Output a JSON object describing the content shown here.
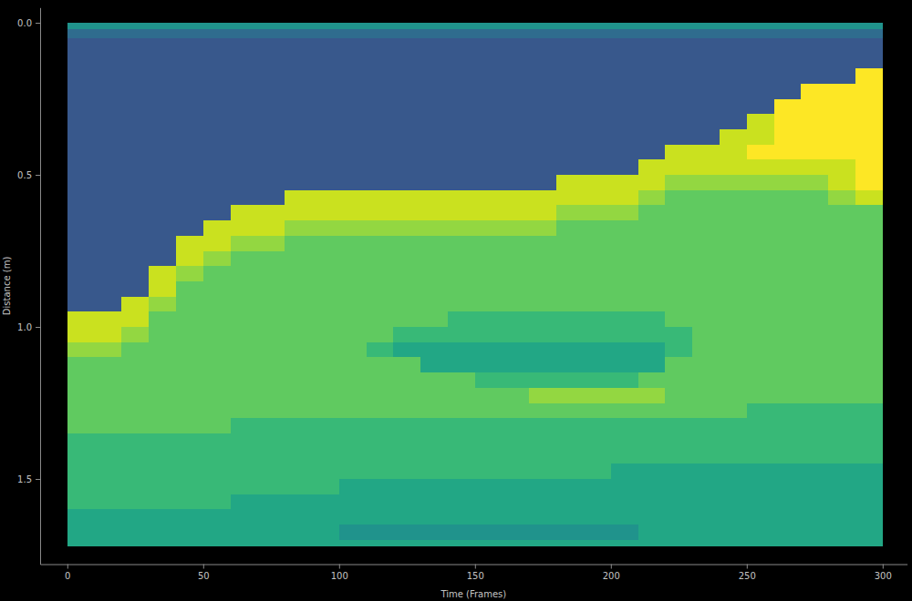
{
  "chart_data": {
    "type": "heatmap",
    "xlabel": "Time (Frames)",
    "ylabel": "Distance (m)",
    "xlim": [
      -10,
      309
    ],
    "ylim": [
      -0.05,
      1.78
    ],
    "xticks": [
      0,
      50,
      100,
      150,
      200,
      250,
      300
    ],
    "yticks": [
      {
        "value": 0,
        "label": "0.0"
      },
      0.5,
      {
        "value": 1,
        "label": "1.0"
      },
      1.5
    ],
    "zlim": [
      0,
      9
    ],
    "x_bins": [
      0,
      10,
      20,
      30,
      40,
      50,
      60,
      70,
      80,
      90,
      100,
      110,
      120,
      130,
      140,
      150,
      160,
      170,
      180,
      190,
      200,
      210,
      220,
      230,
      240,
      250,
      260,
      270,
      280,
      290,
      300
    ],
    "y_bins": [
      0,
      0.02,
      0.05,
      0.1,
      0.15,
      0.2,
      0.25,
      0.3,
      0.35,
      0.4,
      0.45,
      0.5,
      0.55,
      0.6,
      0.65,
      0.7,
      0.75,
      0.8,
      0.85,
      0.9,
      0.95,
      1.0,
      1.05,
      1.1,
      1.15,
      1.2,
      1.25,
      1.3,
      1.35,
      1.4,
      1.45,
      1.5,
      1.55,
      1.6,
      1.65,
      1.7,
      1.72
    ],
    "cells": [
      [
        3,
        3,
        3,
        3,
        3,
        3,
        3,
        3,
        3,
        3,
        3,
        3,
        3,
        3,
        3,
        3,
        3,
        3,
        3,
        3,
        3,
        3,
        3,
        3,
        3,
        3,
        3,
        3,
        3,
        3
      ],
      [
        1,
        1,
        1,
        1,
        1,
        1,
        1,
        1,
        1,
        1,
        1,
        1,
        1,
        1,
        1,
        1,
        1,
        1,
        1,
        1,
        1,
        1,
        1,
        1,
        1,
        1,
        1,
        1,
        1,
        1
      ],
      [
        0,
        0,
        0,
        0,
        0,
        0,
        0,
        0,
        0,
        0,
        0,
        0,
        0,
        0,
        0,
        0,
        0,
        0,
        0,
        0,
        0,
        0,
        0,
        0,
        0,
        0,
        0,
        0,
        0,
        0
      ],
      [
        0,
        0,
        0,
        0,
        0,
        0,
        0,
        0,
        0,
        0,
        0,
        0,
        0,
        0,
        0,
        0,
        0,
        0,
        0,
        0,
        0,
        0,
        0,
        0,
        0,
        0,
        0,
        0,
        0,
        0
      ],
      [
        0,
        0,
        0,
        0,
        0,
        0,
        0,
        0,
        0,
        0,
        0,
        0,
        0,
        0,
        0,
        0,
        0,
        0,
        0,
        0,
        0,
        0,
        0,
        0,
        0,
        0,
        0,
        0,
        0,
        9
      ],
      [
        0,
        0,
        0,
        0,
        0,
        0,
        0,
        0,
        0,
        0,
        0,
        0,
        0,
        0,
        0,
        0,
        0,
        0,
        0,
        0,
        0,
        0,
        0,
        0,
        0,
        0,
        0,
        9,
        9,
        9
      ],
      [
        0,
        0,
        0,
        0,
        0,
        0,
        0,
        0,
        0,
        0,
        0,
        0,
        0,
        0,
        0,
        0,
        0,
        0,
        0,
        0,
        0,
        0,
        0,
        0,
        0,
        0,
        9,
        9,
        9,
        9
      ],
      [
        0,
        0,
        0,
        0,
        0,
        0,
        0,
        0,
        0,
        0,
        0,
        0,
        0,
        0,
        0,
        0,
        0,
        0,
        0,
        0,
        0,
        0,
        0,
        0,
        0,
        8,
        9,
        9,
        9,
        9
      ],
      [
        0,
        0,
        0,
        0,
        0,
        0,
        0,
        0,
        0,
        0,
        0,
        0,
        0,
        0,
        0,
        0,
        0,
        0,
        0,
        0,
        0,
        0,
        0,
        0,
        8,
        8,
        9,
        9,
        9,
        9
      ],
      [
        0,
        0,
        0,
        0,
        0,
        0,
        0,
        0,
        0,
        0,
        0,
        0,
        0,
        0,
        0,
        0,
        0,
        0,
        0,
        0,
        0,
        0,
        8,
        8,
        8,
        9,
        9,
        9,
        9,
        9
      ],
      [
        0,
        0,
        0,
        0,
        0,
        0,
        0,
        0,
        0,
        0,
        0,
        0,
        0,
        0,
        0,
        0,
        0,
        0,
        0,
        0,
        0,
        8,
        8,
        8,
        8,
        8,
        8,
        8,
        8,
        9
      ],
      [
        0,
        0,
        0,
        0,
        0,
        0,
        0,
        0,
        0,
        0,
        0,
        0,
        0,
        0,
        0,
        0,
        0,
        0,
        8,
        8,
        8,
        8,
        7,
        7,
        7,
        7,
        7,
        7,
        8,
        9
      ],
      [
        0,
        0,
        0,
        0,
        0,
        0,
        0,
        0,
        8,
        8,
        8,
        8,
        8,
        8,
        8,
        8,
        8,
        8,
        8,
        8,
        8,
        7,
        6,
        6,
        6,
        6,
        6,
        6,
        7,
        8
      ],
      [
        0,
        0,
        0,
        0,
        0,
        0,
        8,
        8,
        8,
        8,
        8,
        8,
        8,
        8,
        8,
        8,
        8,
        8,
        7,
        7,
        7,
        6,
        6,
        6,
        6,
        6,
        6,
        6,
        6,
        6
      ],
      [
        0,
        0,
        0,
        0,
        0,
        8,
        8,
        8,
        7,
        7,
        7,
        7,
        7,
        7,
        7,
        7,
        7,
        7,
        6,
        6,
        6,
        6,
        6,
        6,
        6,
        6,
        6,
        6,
        6,
        6
      ],
      [
        0,
        0,
        0,
        0,
        8,
        8,
        7,
        7,
        6,
        6,
        6,
        6,
        6,
        6,
        6,
        6,
        6,
        6,
        6,
        6,
        6,
        6,
        6,
        6,
        6,
        6,
        6,
        6,
        6,
        6
      ],
      [
        0,
        0,
        0,
        0,
        8,
        7,
        6,
        6,
        6,
        6,
        6,
        6,
        6,
        6,
        6,
        6,
        6,
        6,
        6,
        6,
        6,
        6,
        6,
        6,
        6,
        6,
        6,
        6,
        6,
        6
      ],
      [
        0,
        0,
        0,
        8,
        7,
        6,
        6,
        6,
        6,
        6,
        6,
        6,
        6,
        6,
        6,
        6,
        6,
        6,
        6,
        6,
        6,
        6,
        6,
        6,
        6,
        6,
        6,
        6,
        6,
        6
      ],
      [
        0,
        0,
        0,
        8,
        6,
        6,
        6,
        6,
        6,
        6,
        6,
        6,
        6,
        6,
        6,
        6,
        6,
        6,
        6,
        6,
        6,
        6,
        6,
        6,
        6,
        6,
        6,
        6,
        6,
        6
      ],
      [
        0,
        0,
        8,
        7,
        6,
        6,
        6,
        6,
        6,
        6,
        6,
        6,
        6,
        6,
        6,
        6,
        6,
        6,
        6,
        6,
        6,
        6,
        6,
        6,
        6,
        6,
        6,
        6,
        6,
        6
      ],
      [
        8,
        8,
        8,
        6,
        6,
        6,
        6,
        6,
        6,
        6,
        6,
        6,
        6,
        6,
        5,
        5,
        5,
        5,
        5,
        5,
        5,
        5,
        6,
        6,
        6,
        6,
        6,
        6,
        6,
        6
      ],
      [
        8,
        8,
        7,
        6,
        6,
        6,
        6,
        6,
        6,
        6,
        6,
        6,
        5,
        5,
        5,
        5,
        5,
        5,
        5,
        5,
        5,
        5,
        5,
        6,
        6,
        6,
        6,
        6,
        6,
        6
      ],
      [
        7,
        7,
        6,
        6,
        6,
        6,
        6,
        6,
        6,
        6,
        6,
        5,
        4,
        4,
        4,
        4,
        4,
        4,
        4,
        4,
        4,
        4,
        5,
        6,
        6,
        6,
        6,
        6,
        6,
        6
      ],
      [
        6,
        6,
        6,
        6,
        6,
        6,
        6,
        6,
        6,
        6,
        6,
        6,
        6,
        4,
        4,
        4,
        4,
        4,
        4,
        4,
        4,
        4,
        6,
        6,
        6,
        6,
        6,
        6,
        6,
        6
      ],
      [
        6,
        6,
        6,
        6,
        6,
        6,
        6,
        6,
        6,
        6,
        6,
        6,
        6,
        6,
        6,
        5,
        5,
        5,
        5,
        5,
        5,
        6,
        6,
        6,
        6,
        6,
        6,
        6,
        6,
        6
      ],
      [
        6,
        6,
        6,
        6,
        6,
        6,
        6,
        6,
        6,
        6,
        6,
        6,
        6,
        6,
        6,
        6,
        6,
        7,
        7,
        7,
        7,
        7,
        6,
        6,
        6,
        6,
        6,
        6,
        6,
        6
      ],
      [
        6,
        6,
        6,
        6,
        6,
        6,
        6,
        6,
        6,
        6,
        6,
        6,
        6,
        6,
        6,
        6,
        6,
        6,
        6,
        6,
        6,
        6,
        6,
        6,
        6,
        5,
        5,
        5,
        5,
        5
      ],
      [
        6,
        6,
        6,
        6,
        6,
        6,
        5,
        5,
        5,
        5,
        5,
        5,
        5,
        5,
        5,
        5,
        5,
        5,
        5,
        5,
        5,
        5,
        5,
        5,
        5,
        5,
        5,
        5,
        5,
        5
      ],
      [
        5,
        5,
        5,
        5,
        5,
        5,
        5,
        5,
        5,
        5,
        5,
        5,
        5,
        5,
        5,
        5,
        5,
        5,
        5,
        5,
        5,
        5,
        5,
        5,
        5,
        5,
        5,
        5,
        5,
        5
      ],
      [
        5,
        5,
        5,
        5,
        5,
        5,
        5,
        5,
        5,
        5,
        5,
        5,
        5,
        5,
        5,
        5,
        5,
        5,
        5,
        5,
        5,
        5,
        5,
        5,
        5,
        5,
        5,
        5,
        5,
        5
      ],
      [
        5,
        5,
        5,
        5,
        5,
        5,
        5,
        5,
        5,
        5,
        5,
        5,
        5,
        5,
        5,
        5,
        5,
        5,
        5,
        5,
        4,
        4,
        4,
        4,
        4,
        4,
        4,
        4,
        4,
        4
      ],
      [
        5,
        5,
        5,
        5,
        5,
        5,
        5,
        5,
        5,
        5,
        4,
        4,
        4,
        4,
        4,
        4,
        4,
        4,
        4,
        4,
        4,
        4,
        4,
        4,
        4,
        4,
        4,
        4,
        4,
        4
      ],
      [
        5,
        5,
        5,
        5,
        5,
        5,
        4,
        4,
        4,
        4,
        4,
        4,
        4,
        4,
        4,
        4,
        4,
        4,
        4,
        4,
        4,
        4,
        4,
        4,
        4,
        4,
        4,
        4,
        4,
        4
      ],
      [
        4,
        4,
        4,
        4,
        4,
        4,
        4,
        4,
        4,
        4,
        4,
        4,
        4,
        4,
        4,
        4,
        4,
        4,
        4,
        4,
        4,
        4,
        4,
        4,
        4,
        4,
        4,
        4,
        4,
        4
      ],
      [
        4,
        4,
        4,
        4,
        4,
        4,
        4,
        4,
        4,
        4,
        3,
        3,
        3,
        3,
        3,
        3,
        3,
        3,
        3,
        3,
        3,
        4,
        4,
        4,
        4,
        4,
        4,
        4,
        4,
        4
      ],
      [
        4,
        4,
        4,
        4,
        4,
        4,
        4,
        4,
        4,
        4,
        4,
        4,
        4,
        4,
        4,
        4,
        4,
        4,
        4,
        4,
        4,
        4,
        4,
        4,
        4,
        4,
        4,
        4,
        4,
        4
      ]
    ]
  }
}
